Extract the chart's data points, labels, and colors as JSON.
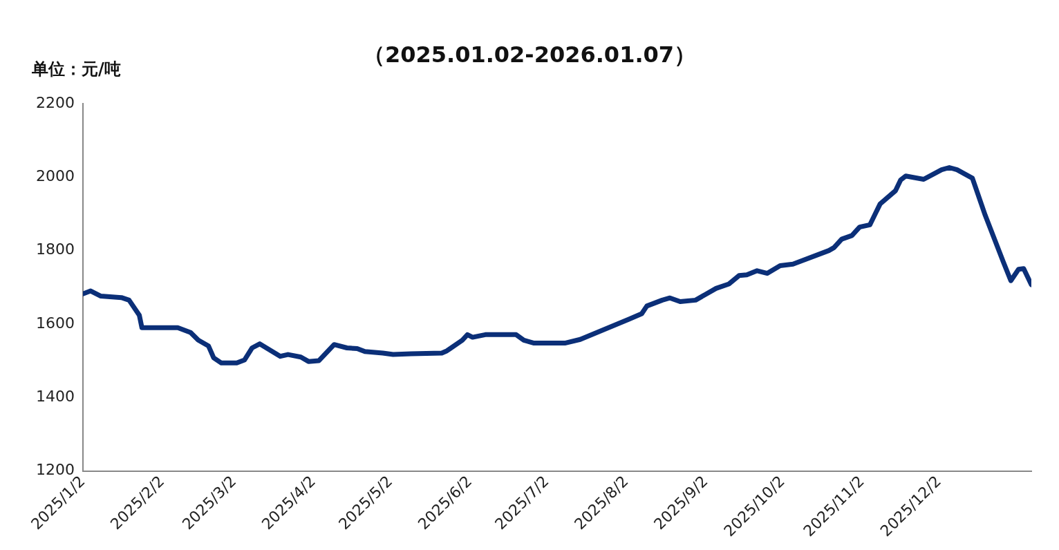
{
  "chart_data": {
    "type": "line",
    "title": "（2025.01.02-2026.01.07）",
    "ylabel": "单位：元/吨",
    "x": [
      "2025-01-02",
      "2025-01-05",
      "2025-01-09",
      "2025-01-17",
      "2025-01-20",
      "2025-01-24",
      "2025-01-25",
      "2025-02-08",
      "2025-02-13",
      "2025-02-16",
      "2025-02-20",
      "2025-02-22",
      "2025-02-25",
      "2025-03-03",
      "2025-03-06",
      "2025-03-09",
      "2025-03-12",
      "2025-03-16",
      "2025-03-20",
      "2025-03-23",
      "2025-03-28",
      "2025-03-31",
      "2025-04-04",
      "2025-04-10",
      "2025-04-15",
      "2025-04-19",
      "2025-04-22",
      "2025-04-29",
      "2025-05-03",
      "2025-05-10",
      "2025-05-22",
      "2025-05-24",
      "2025-05-30",
      "2025-06-01",
      "2025-06-03",
      "2025-06-08",
      "2025-06-20",
      "2025-06-23",
      "2025-06-27",
      "2025-07-09",
      "2025-07-15",
      "2025-08-03",
      "2025-08-08",
      "2025-08-10",
      "2025-08-16",
      "2025-08-19",
      "2025-08-23",
      "2025-08-29",
      "2025-09-06",
      "2025-09-11",
      "2025-09-15",
      "2025-09-18",
      "2025-09-22",
      "2025-09-26",
      "2025-10-01",
      "2025-10-06",
      "2025-10-20",
      "2025-10-22",
      "2025-10-25",
      "2025-10-29",
      "2025-11-01",
      "2025-11-05",
      "2025-11-09",
      "2025-11-15",
      "2025-11-17",
      "2025-11-19",
      "2025-11-26",
      "2025-12-03",
      "2025-12-06",
      "2025-12-09",
      "2025-12-15",
      "2025-12-20",
      "2025-12-27",
      "2025-12-30",
      "2026-01-02",
      "2026-01-04",
      "2026-01-07"
    ],
    "series": [
      {
        "color": "#0b2f78",
        "values": [
          1682,
          1690,
          1676,
          1672,
          1665,
          1624,
          1590,
          1590,
          1577,
          1556,
          1540,
          1508,
          1494,
          1494,
          1502,
          1535,
          1546,
          1529,
          1512,
          1517,
          1510,
          1498,
          1500,
          1544,
          1535,
          1533,
          1525,
          1521,
          1517,
          1519,
          1521,
          1527,
          1556,
          1571,
          1564,
          1571,
          1571,
          1556,
          1548,
          1548,
          1558,
          1613,
          1628,
          1649,
          1665,
          1671,
          1661,
          1665,
          1697,
          1709,
          1732,
          1734,
          1745,
          1738,
          1759,
          1763,
          1800,
          1808,
          1831,
          1841,
          1864,
          1870,
          1927,
          1963,
          1992,
          2003,
          1994,
          2020,
          2026,
          2020,
          1997,
          1896,
          1770,
          1718,
          1749,
          1751,
          1707
        ]
      }
    ],
    "xlim": [
      "2025-01-02",
      "2026-01-07"
    ],
    "xticks": [
      {
        "value": "2025-01-02",
        "label": "2025/1/2"
      },
      {
        "value": "2025-02-02",
        "label": "2025/2/2"
      },
      {
        "value": "2025-03-02",
        "label": "2025/3/2"
      },
      {
        "value": "2025-04-02",
        "label": "2025/4/2"
      },
      {
        "value": "2025-05-02",
        "label": "2025/5/2"
      },
      {
        "value": "2025-06-02",
        "label": "2025/6/2"
      },
      {
        "value": "2025-07-02",
        "label": "2025/7/2"
      },
      {
        "value": "2025-08-02",
        "label": "2025/8/2"
      },
      {
        "value": "2025-09-02",
        "label": "2025/9/2"
      },
      {
        "value": "2025-10-02",
        "label": "2025/10/2"
      },
      {
        "value": "2025-11-02",
        "label": "2025/11/2"
      },
      {
        "value": "2025-12-02",
        "label": "2025/12/2"
      }
    ],
    "ylim": [
      1200,
      2200
    ],
    "yticks": [
      1200,
      1400,
      1600,
      1800,
      2000,
      2200
    ],
    "grid": false,
    "legend": false,
    "marker": "none",
    "line_style": "solid"
  }
}
